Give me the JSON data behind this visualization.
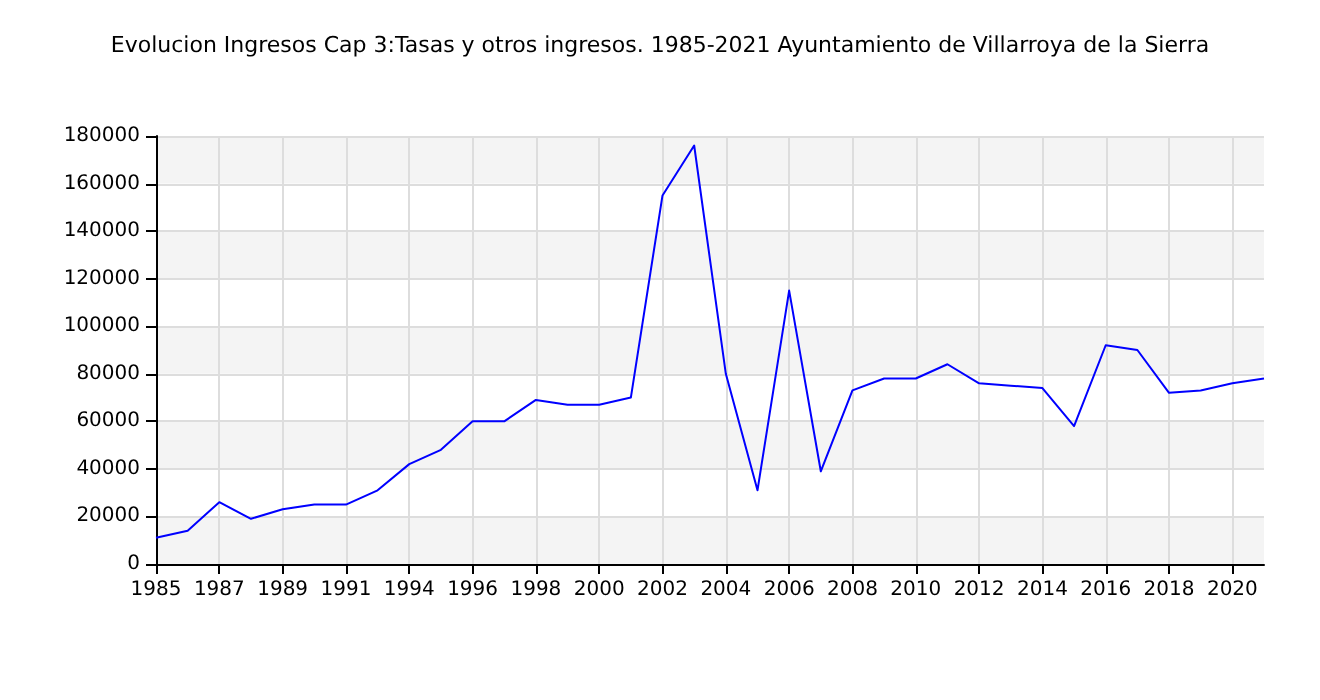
{
  "chart_data": {
    "type": "line",
    "title": "Evolucion Ingresos Cap 3:Tasas y otros ingresos. 1985-2021 Ayuntamiento de Villarroya de la Sierra",
    "categories": [
      "1985",
      null,
      "1987",
      null,
      "1989",
      null,
      "1991",
      null,
      "1994",
      null,
      "1996",
      null,
      "1998",
      null,
      "2000",
      null,
      "2002",
      null,
      "2004",
      null,
      "2006",
      null,
      "2008",
      null,
      "2010",
      null,
      "2012",
      null,
      "2014",
      null,
      "2016",
      null,
      "2018",
      null,
      "2020",
      null
    ],
    "series": [
      {
        "color": "#0000ff",
        "values": [
          11000,
          14000,
          26000,
          19000,
          23000,
          25000,
          25000,
          31000,
          42000,
          48000,
          60000,
          60000,
          69000,
          67000,
          67000,
          70000,
          155000,
          176000,
          80000,
          31000,
          115000,
          39000,
          73000,
          78000,
          78000,
          84000,
          76000,
          75000,
          74000,
          58000,
          92000,
          90000,
          72000,
          73000,
          76000,
          78000
        ]
      }
    ],
    "ylim": [
      0,
      180000
    ],
    "yticks": [
      0,
      20000,
      40000,
      60000,
      80000,
      100000,
      120000,
      140000,
      160000,
      180000
    ],
    "grid": true
  }
}
